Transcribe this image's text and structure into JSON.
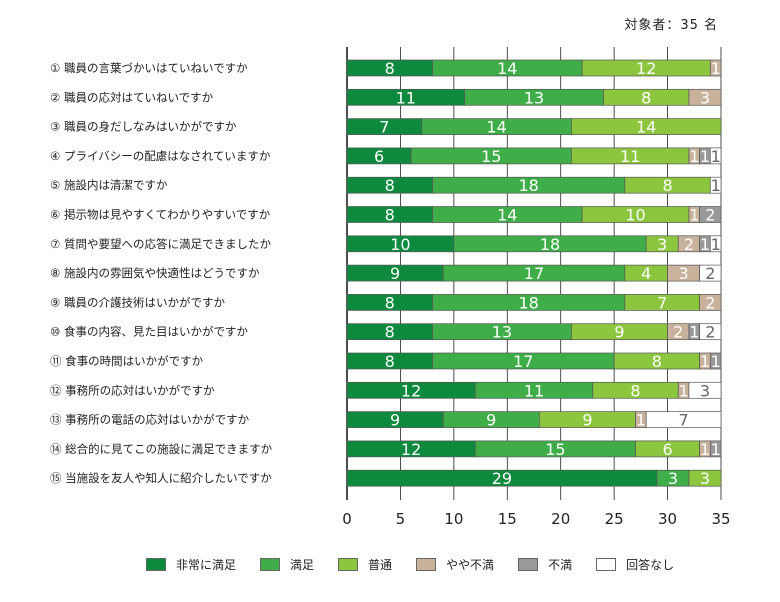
{
  "subject_count": "対象者：35 名",
  "colors": {
    "very_satisfied": "#0e8a3e",
    "satisfied": "#3fae49",
    "normal": "#8cc63f",
    "somewhat_dissatisfied": "#c8b29b",
    "dissatisfied": "#999999",
    "no_answer": "#ffffff"
  },
  "legend": [
    {
      "key": "very_satisfied",
      "label": "非常に満足"
    },
    {
      "key": "satisfied",
      "label": "満足"
    },
    {
      "key": "normal",
      "label": "普通"
    },
    {
      "key": "somewhat_dissatisfied",
      "label": "やや不満"
    },
    {
      "key": "dissatisfied",
      "label": "不満"
    },
    {
      "key": "no_answer",
      "label": "回答なし"
    }
  ],
  "chart_data": {
    "type": "bar",
    "orientation": "horizontal",
    "stacked": true,
    "xlim": [
      0,
      35
    ],
    "xticks": [
      0,
      5,
      10,
      15,
      20,
      25,
      30,
      35
    ],
    "categories": [
      "① 職員の言葉づかいはていねいですか",
      "② 職員の応対はていねいですか",
      "③ 職員の身だしなみはいかがですか",
      "④ プライバシーの配慮はなされていますか",
      "⑤ 施設内は清潔ですか",
      "⑥ 掲示物は見やすくてわかりやすいですか",
      "⑦ 質問や要望への応答に満足できましたか",
      "⑧ 施設内の雰囲気や快適性はどうですか",
      "⑨ 職員の介護技術はいかがですか",
      "⑩ 食事の内容、見た目はいかがですか",
      "⑪ 食事の時間はいかがですか",
      "⑫ 事務所の応対はいかがですか",
      "⑬ 事務所の電話の応対はいかがですか",
      "⑭ 総合的に見てこの施設に満足できますか",
      "⑮ 当施設を友人や知人に紹介したいですか"
    ],
    "series": [
      {
        "name": "非常に満足",
        "key": "very_satisfied",
        "values": [
          8,
          11,
          7,
          6,
          8,
          8,
          10,
          9,
          8,
          8,
          8,
          12,
          9,
          12,
          29
        ]
      },
      {
        "name": "満足",
        "key": "satisfied",
        "values": [
          14,
          13,
          14,
          15,
          18,
          14,
          18,
          17,
          18,
          13,
          17,
          11,
          9,
          15,
          3
        ]
      },
      {
        "name": "普通",
        "key": "normal",
        "values": [
          12,
          8,
          14,
          11,
          8,
          10,
          3,
          4,
          7,
          9,
          8,
          8,
          9,
          6,
          3
        ]
      },
      {
        "name": "やや不満",
        "key": "somewhat_dissatisfied",
        "values": [
          1,
          3,
          0,
          1,
          0,
          1,
          2,
          3,
          2,
          2,
          1,
          1,
          1,
          1,
          0
        ]
      },
      {
        "name": "不満",
        "key": "dissatisfied",
        "values": [
          0,
          0,
          0,
          1,
          0,
          2,
          1,
          0,
          0,
          1,
          1,
          0,
          0,
          1,
          0
        ]
      },
      {
        "name": "回答なし",
        "key": "no_answer",
        "values": [
          0,
          0,
          0,
          1,
          1,
          0,
          1,
          2,
          0,
          2,
          0,
          3,
          7,
          0,
          0
        ]
      }
    ]
  }
}
